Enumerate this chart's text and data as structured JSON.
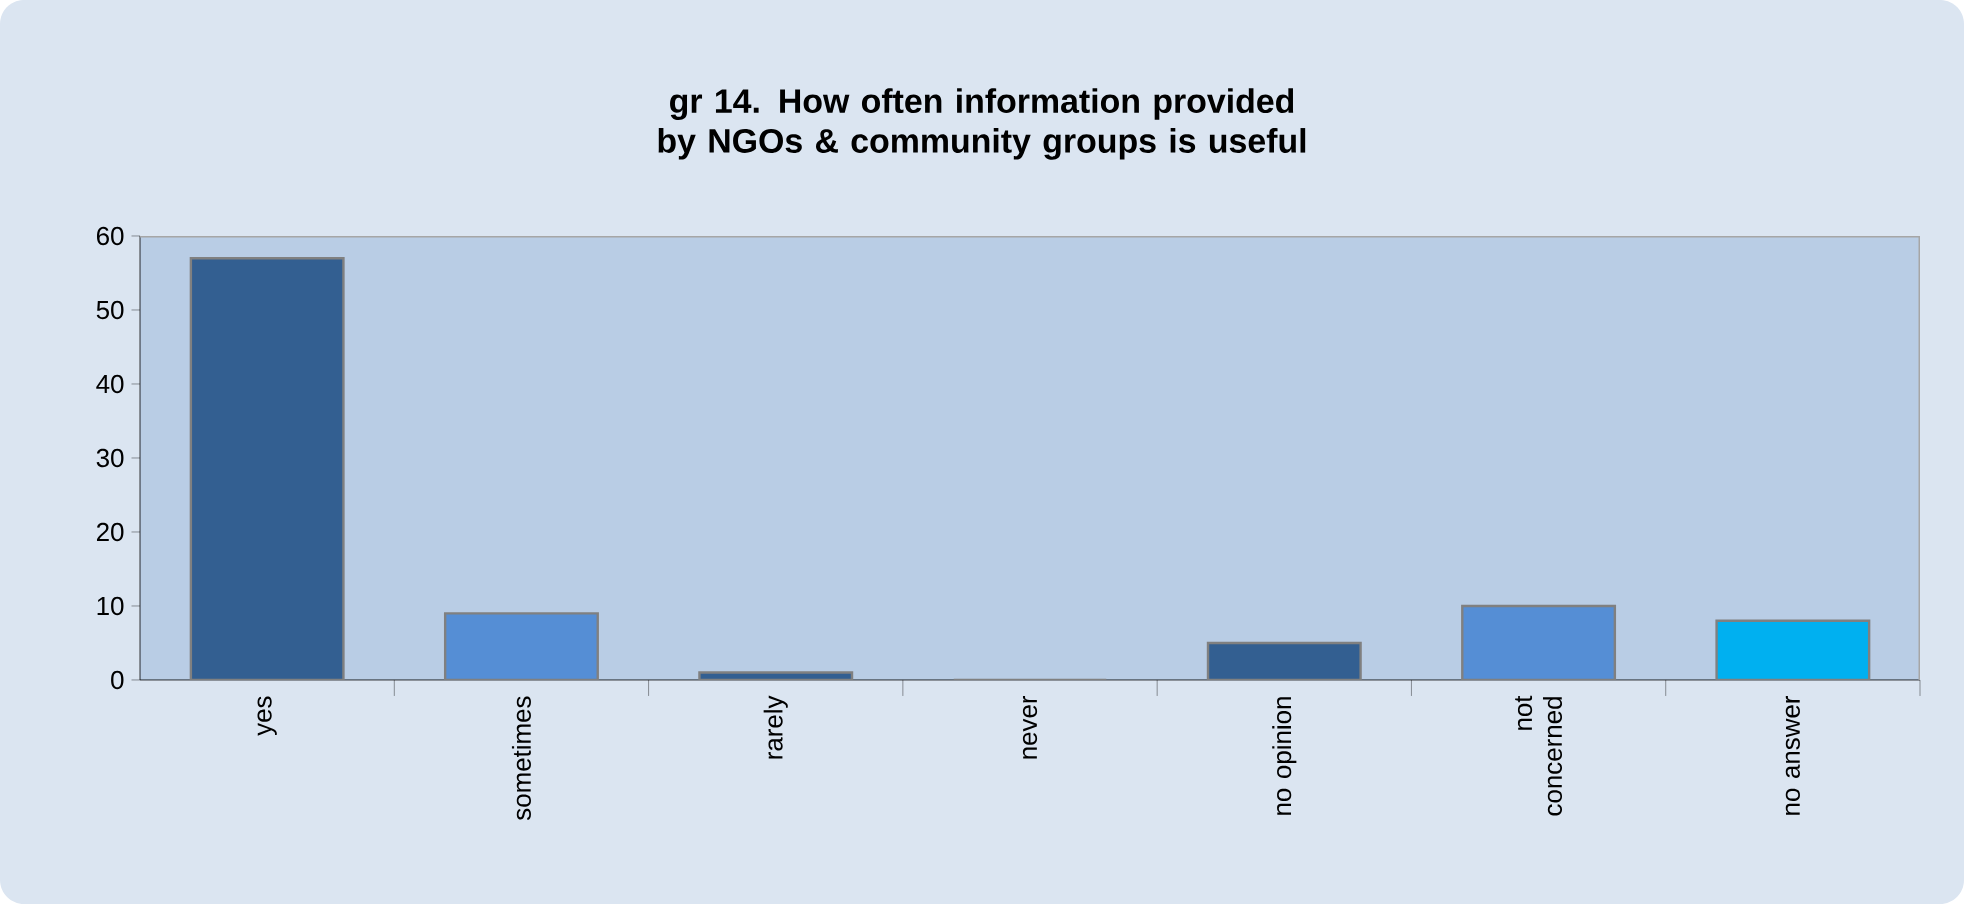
{
  "chart_data": {
    "type": "bar",
    "title": "gr 14. How often information provided by NGOs & community groups is useful",
    "categories": [
      "yes",
      "sometimes",
      "rarely",
      "never",
      "no opinion",
      "not concerned",
      "no answer"
    ],
    "values": [
      57,
      9,
      1,
      0,
      5,
      10,
      8
    ],
    "colors": [
      "#335f91",
      "#558ed5",
      "#335f91",
      "#335f91",
      "#335f91",
      "#558ed5",
      "#00b0f0"
    ],
    "ylim": [
      0,
      60
    ],
    "yticks": [
      0,
      10,
      20,
      30,
      40,
      50,
      60
    ],
    "grid": false
  }
}
